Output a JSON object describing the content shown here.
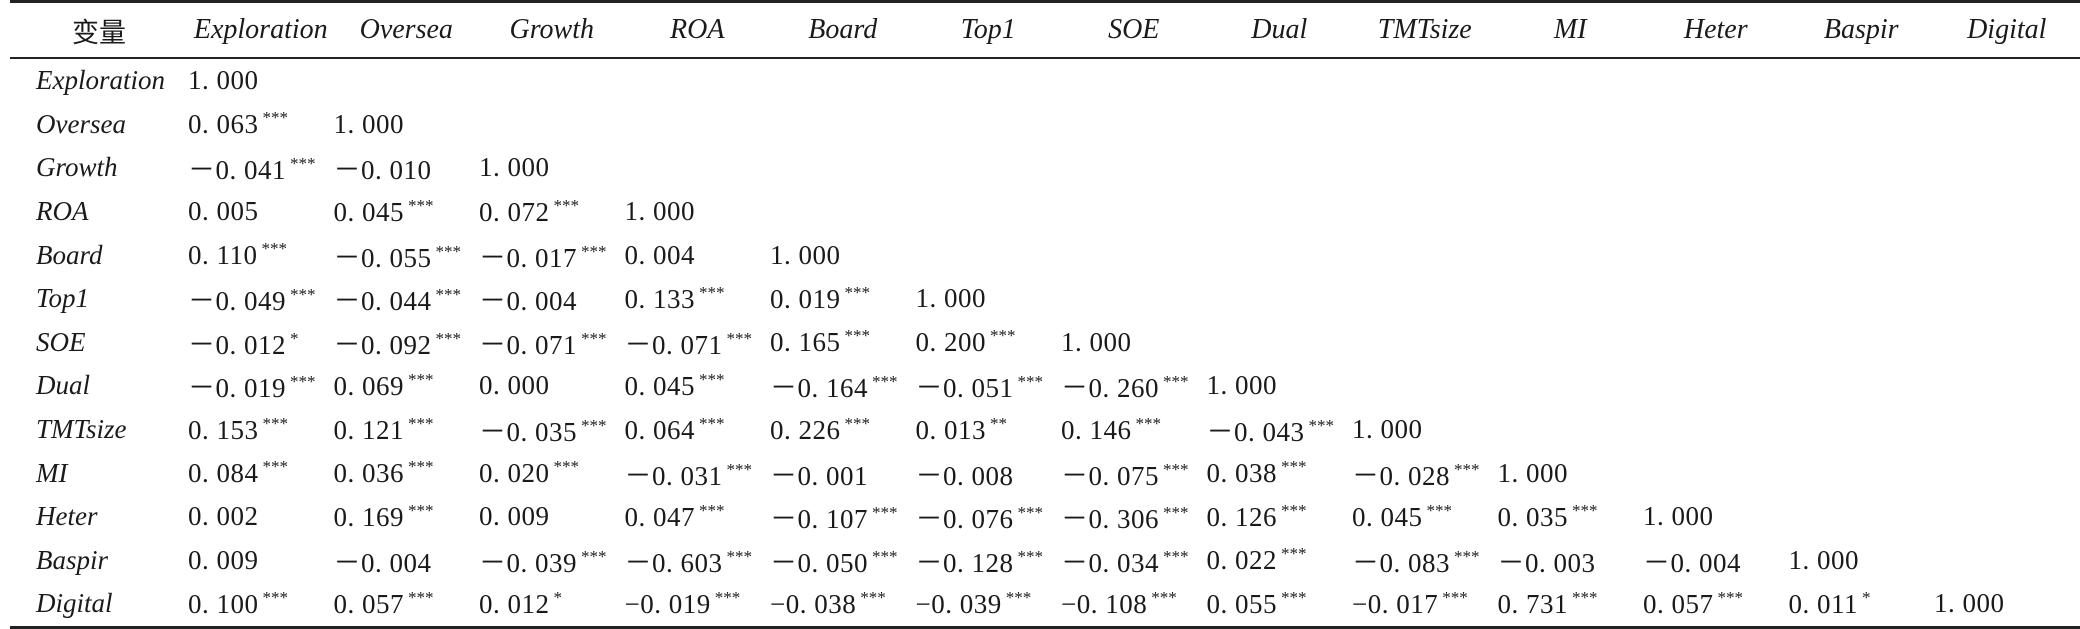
{
  "table": {
    "corner": "变量",
    "columns": [
      "Exploration",
      "Oversea",
      "Growth",
      "ROA",
      "Board",
      "Top1",
      "SOE",
      "Dual",
      "TMTsize",
      "MI",
      "Heter",
      "Baspir",
      "Digital"
    ],
    "rows": [
      {
        "label": "Exploration",
        "cells": [
          [
            "1. 000",
            ""
          ]
        ]
      },
      {
        "label": "Oversea",
        "cells": [
          [
            "0. 063",
            "***"
          ],
          [
            "1. 000",
            ""
          ]
        ]
      },
      {
        "label": "Growth",
        "cells": [
          [
            "－0. 041",
            "***"
          ],
          [
            "－0. 010",
            ""
          ],
          [
            "1. 000",
            ""
          ]
        ]
      },
      {
        "label": "ROA",
        "cells": [
          [
            "0. 005",
            ""
          ],
          [
            "0. 045",
            "***"
          ],
          [
            "0. 072",
            "***"
          ],
          [
            "1. 000",
            ""
          ]
        ]
      },
      {
        "label": "Board",
        "cells": [
          [
            "0. 110",
            "***"
          ],
          [
            "－0. 055",
            "***"
          ],
          [
            "－0. 017",
            "***"
          ],
          [
            "0. 004",
            ""
          ],
          [
            "1. 000",
            ""
          ]
        ]
      },
      {
        "label": "Top1",
        "cells": [
          [
            "－0. 049",
            "***"
          ],
          [
            "－0. 044",
            "***"
          ],
          [
            "－0. 004",
            ""
          ],
          [
            "0. 133",
            "***"
          ],
          [
            "0. 019",
            "***"
          ],
          [
            "1. 000",
            ""
          ]
        ]
      },
      {
        "label": "SOE",
        "cells": [
          [
            "－0. 012",
            "*"
          ],
          [
            "－0. 092",
            "***"
          ],
          [
            "－0. 071",
            "***"
          ],
          [
            "－0. 071",
            "***"
          ],
          [
            "0. 165",
            "***"
          ],
          [
            "0. 200",
            "***"
          ],
          [
            "1. 000",
            ""
          ]
        ]
      },
      {
        "label": "Dual",
        "cells": [
          [
            "－0. 019",
            "***"
          ],
          [
            "0. 069",
            "***"
          ],
          [
            "0. 000",
            ""
          ],
          [
            "0. 045",
            "***"
          ],
          [
            "－0. 164",
            "***"
          ],
          [
            "－0. 051",
            "***"
          ],
          [
            "－0. 260",
            "***"
          ],
          [
            "1. 000",
            ""
          ]
        ]
      },
      {
        "label": "TMTsize",
        "cells": [
          [
            "0. 153",
            "***"
          ],
          [
            "0. 121",
            "***"
          ],
          [
            "－0. 035",
            "***"
          ],
          [
            "0. 064",
            "***"
          ],
          [
            "0. 226",
            "***"
          ],
          [
            "0. 013",
            "**"
          ],
          [
            "0. 146",
            "***"
          ],
          [
            "－0. 043",
            "***"
          ],
          [
            "1. 000",
            ""
          ]
        ]
      },
      {
        "label": "MI",
        "cells": [
          [
            "0. 084",
            "***"
          ],
          [
            "0. 036",
            "***"
          ],
          [
            "0. 020",
            "***"
          ],
          [
            "－0. 031",
            "***"
          ],
          [
            "－0. 001",
            ""
          ],
          [
            "－0. 008",
            ""
          ],
          [
            "－0. 075",
            "***"
          ],
          [
            "0. 038",
            "***"
          ],
          [
            "－0. 028",
            "***"
          ],
          [
            "1. 000",
            ""
          ]
        ]
      },
      {
        "label": "Heter",
        "cells": [
          [
            "0. 002",
            ""
          ],
          [
            "0. 169",
            "***"
          ],
          [
            "0. 009",
            ""
          ],
          [
            "0. 047",
            "***"
          ],
          [
            "－0. 107",
            "***"
          ],
          [
            "－0. 076",
            "***"
          ],
          [
            "－0. 306",
            "***"
          ],
          [
            "0. 126",
            "***"
          ],
          [
            "0. 045",
            "***"
          ],
          [
            "0. 035",
            "***"
          ],
          [
            "1. 000",
            ""
          ]
        ]
      },
      {
        "label": "Baspir",
        "cells": [
          [
            "0. 009",
            ""
          ],
          [
            "－0. 004",
            ""
          ],
          [
            "－0. 039",
            "***"
          ],
          [
            "－0. 603",
            "***"
          ],
          [
            "－0. 050",
            "***"
          ],
          [
            "－0. 128",
            "***"
          ],
          [
            "－0. 034",
            "***"
          ],
          [
            "0. 022",
            "***"
          ],
          [
            "－0. 083",
            "***"
          ],
          [
            "－0. 003",
            ""
          ],
          [
            "－0. 004",
            ""
          ],
          [
            "1. 000",
            ""
          ]
        ]
      },
      {
        "label": "Digital",
        "cells": [
          [
            "0. 100",
            "***"
          ],
          [
            "0. 057",
            "***"
          ],
          [
            "0. 012",
            "*"
          ],
          [
            "−0. 019",
            "***"
          ],
          [
            "−0. 038",
            "***"
          ],
          [
            "−0. 039",
            "***"
          ],
          [
            "−0. 108",
            "***"
          ],
          [
            "0. 055",
            "***"
          ],
          [
            "−0. 017",
            "***"
          ],
          [
            "0. 731",
            "***"
          ],
          [
            "0. 057",
            "***"
          ],
          [
            "0. 011",
            "*"
          ],
          [
            "1. 000",
            ""
          ]
        ]
      }
    ]
  }
}
